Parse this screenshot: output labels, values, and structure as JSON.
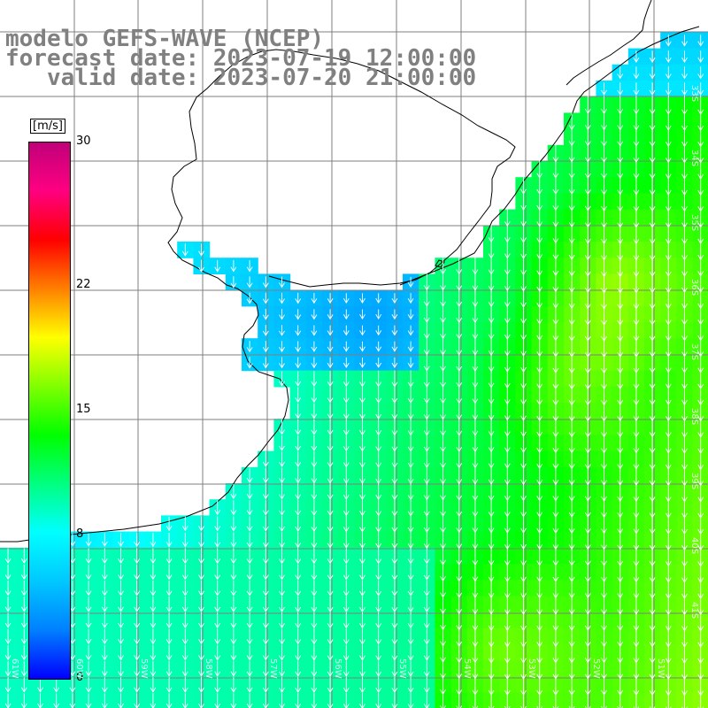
{
  "title": {
    "line1": "modelo GEFS-WAVE (NCEP)",
    "line2": "forecast date: 2023-07-19 12:00:00",
    "line3": "   valid date: 2023-07-20 21:00:00"
  },
  "colorbar": {
    "unit": "[m/s]",
    "ticks": [
      "30",
      "22",
      "15",
      "8",
      "0"
    ],
    "tick_values": [
      30,
      22,
      15,
      8,
      0
    ],
    "colors": [
      "#0000ff",
      "#0080ff",
      "#00c8ff",
      "#00ffff",
      "#00ff80",
      "#00ff00",
      "#80ff00",
      "#ffff00",
      "#ff8000",
      "#ff0000",
      "#ff0080",
      "#c0007a"
    ]
  },
  "map_edge_labels": {
    "right": [
      "33S",
      "34S",
      "35S",
      "36S",
      "37S",
      "38S",
      "39S",
      "40S",
      "41S"
    ],
    "bottom": [
      "61W",
      "60W",
      "59W",
      "58W",
      "57W",
      "56W",
      "55W",
      "54W",
      "53W",
      "52W",
      "51W"
    ]
  },
  "field": {
    "description_units": "m/s",
    "wind_direction": "south"
  }
}
